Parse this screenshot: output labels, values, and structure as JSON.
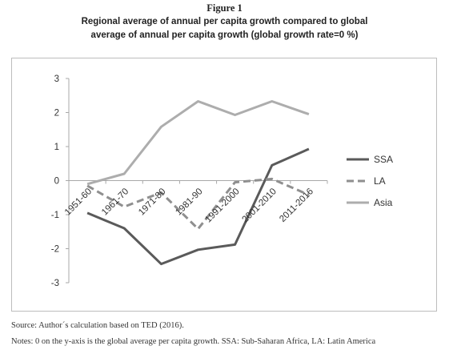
{
  "figure": {
    "label": "Figure 1",
    "title_line1": "Regional average of annual per capita growth compared to global",
    "title_line2": "average of annual per capita growth (global growth rate=0 %)"
  },
  "footer": {
    "source": "Source: Author´s calculation based on TED (2016).",
    "notes": "Notes: 0 on the y-axis is the global average per capita growth. SSA: Sub-Saharan Africa, LA: Latin America"
  },
  "chart_data": {
    "type": "line",
    "title": "",
    "xlabel": "",
    "ylabel": "",
    "categories": [
      "1951-60",
      "1961-70",
      "1971-80",
      "1981-90",
      "1991-2000",
      "2001-2010",
      "2011-2016"
    ],
    "ylim": [
      -3,
      3
    ],
    "yticks": [
      -3,
      -2,
      -1,
      0,
      1,
      2,
      3
    ],
    "grid": false,
    "legend_position": "right",
    "series": [
      {
        "name": "SSA",
        "values": [
          -0.95,
          -1.4,
          -2.45,
          -2.03,
          -1.88,
          0.45,
          0.93
        ],
        "color": "#5a5a5a",
        "dash": "solid"
      },
      {
        "name": "LA",
        "values": [
          -0.15,
          -0.77,
          -0.35,
          -1.42,
          -0.05,
          0.05,
          -0.42
        ],
        "color": "#8f8f8f",
        "dash": "dashed"
      },
      {
        "name": "Asia",
        "values": [
          -0.1,
          0.2,
          1.58,
          2.33,
          1.93,
          2.33,
          1.95
        ],
        "color": "#adadad",
        "dash": "solid"
      }
    ]
  }
}
